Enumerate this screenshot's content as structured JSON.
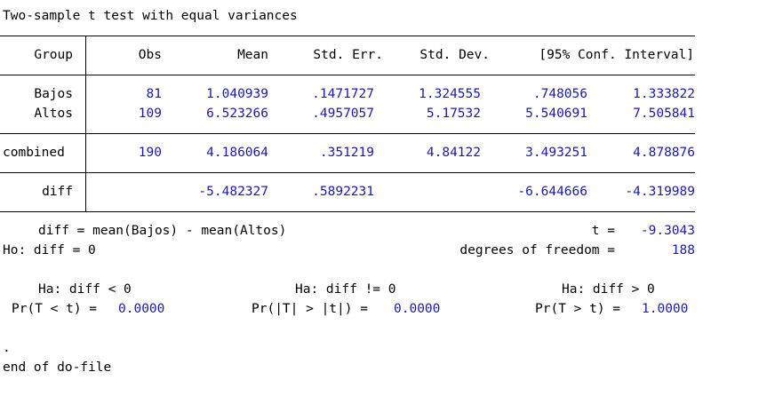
{
  "title": "Two-sample t test with equal variances",
  "table": {
    "headers": {
      "group": "Group",
      "obs": "Obs",
      "mean": "Mean",
      "std_err": "Std. Err.",
      "std_dev": "Std. Dev.",
      "ci": "[95% Conf. Interval]"
    },
    "rows": [
      {
        "group": "Bajos",
        "obs": "81",
        "mean": "1.040939",
        "std_err": ".1471727",
        "std_dev": "1.324555",
        "ci_low": ".748056",
        "ci_high": "1.333822"
      },
      {
        "group": "Altos",
        "obs": "109",
        "mean": "6.523266",
        "std_err": ".4957057",
        "std_dev": "5.17532",
        "ci_low": "5.540691",
        "ci_high": "7.505841"
      }
    ],
    "combined": {
      "group": "combined",
      "obs": "190",
      "mean": "4.186064",
      "std_err": ".351219",
      "std_dev": "4.84122",
      "ci_low": "3.493251",
      "ci_high": "4.878876"
    },
    "diff": {
      "group": "diff",
      "mean": "-5.482327",
      "std_err": ".5892231",
      "ci_low": "-6.644666",
      "ci_high": "-4.319989"
    }
  },
  "stats": {
    "diff_def": "diff = mean(Bajos) - mean(Altos)",
    "t_label": "t =",
    "t_value": "-9.3043",
    "ho": "Ho: diff = 0",
    "df_label": "degrees of freedom =",
    "df_value": "188"
  },
  "hypotheses": {
    "left": {
      "ha": "Ha: diff < 0",
      "pr_label": "Pr(T < t) =",
      "pr_value": "0.0000"
    },
    "mid": {
      "ha": "Ha: diff != 0",
      "pr_label": "Pr(|T| > |t|) =",
      "pr_value": "0.0000"
    },
    "right": {
      "ha": "Ha: diff > 0",
      "pr_label": "Pr(T > t) =",
      "pr_value": "1.0000"
    }
  },
  "footer": {
    "dot": ".",
    "end": "end of do-file"
  }
}
